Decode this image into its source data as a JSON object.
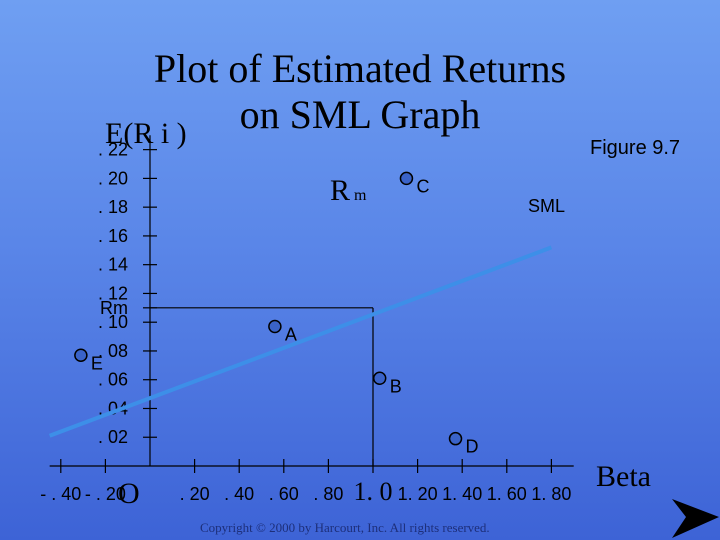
{
  "slide": {
    "title_line1": "Plot of Estimated Returns",
    "title_line2": "on SML Graph",
    "figure_label": "Figure 9.7",
    "copyright": "Copyright © 2000 by Harcourt, Inc.  All rights reserved."
  },
  "chart_data": {
    "type": "scatter",
    "ylabel": "E(R i )",
    "xlabel": "Beta",
    "origin_label": "O",
    "rm_label": "R m",
    "y_tick_labels": [
      ". 22",
      ". 20",
      ". 18",
      ". 16",
      ". 14",
      ". 12",
      "Rm",
      ". 10",
      ". 08",
      ". 06",
      ". 04",
      ". 02"
    ],
    "x_tick_labels": [
      "- . 40",
      "- . 20",
      ". 20",
      ". 40",
      ". 60",
      ". 80",
      "1. 0",
      "1. 20",
      "1. 40",
      "1. 60",
      "1. 80"
    ],
    "x_ticks": [
      -0.4,
      -0.2,
      0.2,
      0.4,
      0.6,
      0.8,
      1.0,
      1.2,
      1.4,
      1.6,
      1.8
    ],
    "y_ticks": [
      0.22,
      0.2,
      0.18,
      0.16,
      0.14,
      0.12,
      0.11,
      0.1,
      0.08,
      0.06,
      0.04,
      0.02
    ],
    "xlim": [
      -0.45,
      1.9
    ],
    "ylim": [
      0,
      0.23
    ],
    "sml": {
      "name": "SML",
      "color": "#3d8fe8",
      "x": [
        -0.45,
        1.8
      ],
      "y": [
        0.021,
        0.152
      ]
    },
    "market_point": {
      "beta": 1.0,
      "return": 0.11
    },
    "points": [
      {
        "label": "A",
        "x": 0.56,
        "y": 0.097
      },
      {
        "label": "B",
        "x": 1.03,
        "y": 0.061
      },
      {
        "label": "C",
        "x": 1.15,
        "y": 0.2
      },
      {
        "label": "D",
        "x": 1.37,
        "y": 0.019
      },
      {
        "label": "E",
        "x": -0.31,
        "y": 0.077
      }
    ],
    "marker_color": "#3a63c8"
  }
}
